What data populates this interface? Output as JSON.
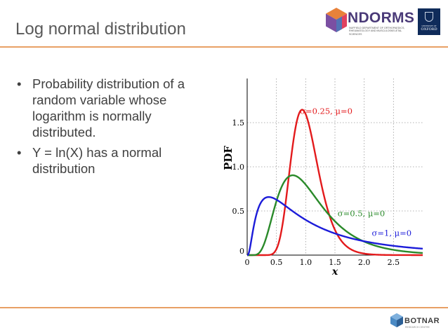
{
  "slide": {
    "title": "Log normal distribution",
    "bullets": [
      "Probability distribution of a random variable whose logarithm is normally distributed.",
      "Y = ln(X) has a normal distribution"
    ],
    "bullet_char": "•"
  },
  "logos": {
    "ndorms": {
      "name": "NDORMS",
      "subtitle": "Nuffield Department of Orthopaedics, Rheumatology and Musculoskeletal Sciences"
    },
    "oxford": {
      "line1": "UNIVERSITY OF",
      "line2": "OXFORD"
    },
    "botnar": {
      "name": "BOTNAR",
      "subtitle": "Research Centre"
    }
  },
  "colors": {
    "rule": "#e8a065",
    "title": "#595959",
    "text": "#404040",
    "series": [
      "#e31a1c",
      "#2a8a2a",
      "#1c1cd9"
    ]
  },
  "chart_data": {
    "type": "line",
    "title": "",
    "xlabel": "x",
    "ylabel": "PDF",
    "xlim": [
      0,
      3.0
    ],
    "ylim": [
      0,
      2.0
    ],
    "grid": true,
    "x_ticks": [
      0,
      0.5,
      1.0,
      1.5,
      2.0,
      2.5
    ],
    "x_tick_labels": [
      "0",
      "0.5",
      "1.0",
      "1.5",
      "2.0",
      "2.5"
    ],
    "y_ticks": [
      0,
      0.5,
      1.0,
      1.5
    ],
    "y_tick_labels": [
      "0",
      "0.5",
      "1.0",
      "1.5"
    ],
    "series": [
      {
        "name": "σ=0.25, μ=0",
        "distribution": "lognormal",
        "sigma": 0.25,
        "mu": 0,
        "color": "#e31a1c",
        "label_at": [
          1.35,
          1.6
        ]
      },
      {
        "name": "σ=0.5, μ=0",
        "distribution": "lognormal",
        "sigma": 0.5,
        "mu": 0,
        "color": "#2a8a2a",
        "label_at": [
          1.95,
          0.44
        ]
      },
      {
        "name": "σ=1, μ=0",
        "distribution": "lognormal",
        "sigma": 1,
        "mu": 0,
        "color": "#1c1cd9",
        "label_at": [
          2.47,
          0.22
        ]
      }
    ]
  }
}
